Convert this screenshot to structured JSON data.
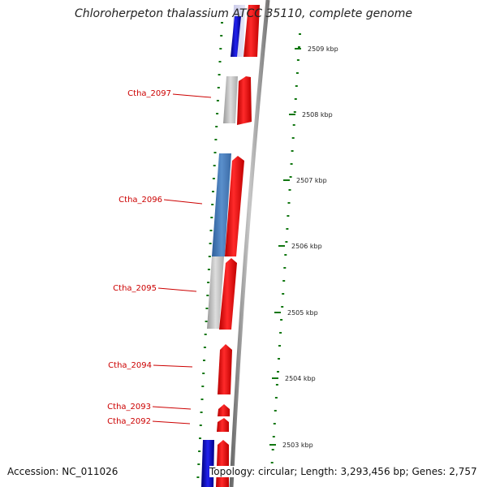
{
  "title": "Chloroherpeton thalassium ATCC 35110, complete genome",
  "accession": "Accession: NC_011026",
  "topology": "Topology: circular; Length: 3,293,456 bp; Genes: 2,757",
  "colors": {
    "cds_forward": "#ee1111",
    "blast_strong": "#1111dd",
    "blast_medium": "#4477bb",
    "blast_weak": "#bbbbbb",
    "tick": "#117711",
    "label": "#cc0000",
    "backbone": "#888888"
  },
  "kbp_labels": [
    "2509 kbp",
    "2508 kbp",
    "2507 kbp",
    "2506 kbp",
    "2505 kbp",
    "2504 kbp",
    "2503 kbp"
  ],
  "gene_labels": [
    "Ctha_2097",
    "Ctha_2096",
    "Ctha_2095",
    "Ctha_2094",
    "Ctha_2093",
    "Ctha_2092"
  ]
}
